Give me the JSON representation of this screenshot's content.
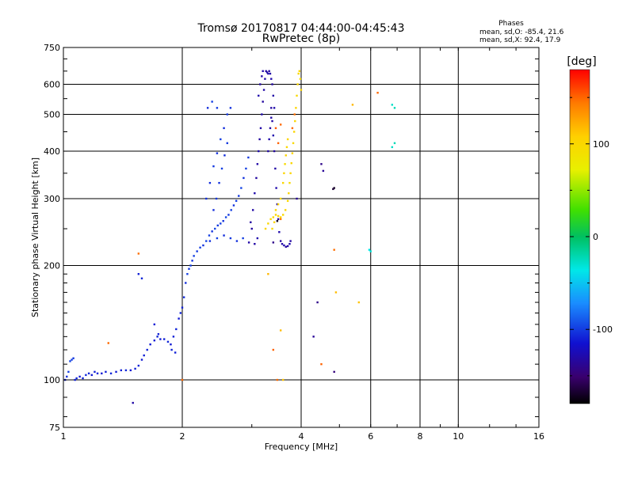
{
  "chart_data": {
    "type": "scatter",
    "title": "Tromsø 20170817 04:44:00-04:45:43",
    "subtitle": "RwPretec (8p)",
    "xlabel": "Frequency [MHz]",
    "ylabel": "Stationary phase Virtual Height [km]",
    "x_scale": "log",
    "y_scale": "log",
    "xlim": [
      1,
      16
    ],
    "ylim": [
      75,
      750
    ],
    "x_ticks": [
      1,
      2,
      4,
      6,
      8,
      10,
      16
    ],
    "x_tick_labels": [
      "1",
      "2",
      "4",
      "6",
      "8",
      "10",
      "16"
    ],
    "y_ticks": [
      75,
      100,
      200,
      300,
      400,
      500,
      600,
      750
    ],
    "y_tick_labels": [
      "75",
      "100",
      "200",
      "300",
      "400",
      "500",
      "600",
      "750"
    ],
    "grid": true,
    "phases_box": {
      "title": "Phases",
      "line_o": "mean, sd,O: -85.4, 21.6",
      "line_x": "mean, sd,X:  92.4, 17.9"
    },
    "colorbar": {
      "unit": "[deg]",
      "range": [
        -180,
        180
      ],
      "ticks": [
        100,
        0,
        -100
      ],
      "tick_labels": [
        "100",
        "0",
        "-100"
      ]
    },
    "series": [
      {
        "points": [
          [
            1.01,
            100,
            -110
          ],
          [
            1.02,
            102,
            -105
          ],
          [
            1.03,
            105,
            -100
          ],
          [
            1.04,
            112,
            -98
          ],
          [
            1.05,
            113,
            -100
          ],
          [
            1.06,
            114,
            -102
          ],
          [
            1.07,
            100,
            -110
          ],
          [
            1.08,
            101,
            -108
          ],
          [
            1.1,
            102,
            -112
          ],
          [
            1.12,
            101,
            -110
          ],
          [
            1.14,
            103,
            -105
          ],
          [
            1.16,
            104,
            -108
          ],
          [
            1.18,
            103,
            -112
          ],
          [
            1.2,
            105,
            -110
          ],
          [
            1.22,
            104,
            -108
          ],
          [
            1.25,
            104,
            -112
          ],
          [
            1.28,
            105,
            -110
          ],
          [
            1.32,
            104,
            -108
          ],
          [
            1.36,
            105,
            -112
          ],
          [
            1.4,
            106,
            -110
          ],
          [
            1.44,
            106,
            -108
          ],
          [
            1.48,
            106,
            -112
          ],
          [
            1.52,
            107,
            -110
          ],
          [
            1.55,
            109,
            -108
          ],
          [
            1.58,
            113,
            -112
          ],
          [
            1.6,
            116,
            -110
          ],
          [
            1.63,
            120,
            -108
          ],
          [
            1.66,
            124,
            -112
          ],
          [
            1.7,
            127,
            -110
          ],
          [
            1.73,
            130,
            -108
          ],
          [
            1.76,
            128,
            -112
          ],
          [
            1.8,
            128,
            -110
          ],
          [
            1.84,
            126,
            -108
          ],
          [
            1.87,
            124,
            -112
          ],
          [
            1.9,
            130,
            -110
          ],
          [
            1.93,
            136,
            -108
          ],
          [
            1.96,
            145,
            -112
          ],
          [
            1.98,
            150,
            -108
          ],
          [
            2.0,
            155,
            -110
          ],
          [
            2.02,
            165,
            -106
          ],
          [
            2.04,
            180,
            -105
          ],
          [
            2.06,
            190,
            -100
          ],
          [
            2.08,
            196,
            -102
          ],
          [
            2.1,
            200,
            -100
          ],
          [
            2.12,
            206,
            -104
          ],
          [
            2.14,
            212,
            -100
          ],
          [
            2.18,
            218,
            -102
          ],
          [
            2.22,
            223,
            -100
          ],
          [
            2.26,
            226,
            -104
          ],
          [
            2.3,
            232,
            -98
          ],
          [
            2.34,
            240,
            -100
          ],
          [
            2.38,
            246,
            -104
          ],
          [
            2.42,
            250,
            -98
          ],
          [
            2.46,
            255,
            -102
          ],
          [
            2.5,
            258,
            -100
          ],
          [
            2.54,
            262,
            -104
          ],
          [
            2.58,
            268,
            -98
          ],
          [
            2.62,
            272,
            -102
          ],
          [
            2.66,
            280,
            -100
          ],
          [
            2.7,
            288,
            -104
          ],
          [
            2.74,
            296,
            -100
          ],
          [
            2.78,
            305,
            -102
          ],
          [
            2.82,
            320,
            -98
          ],
          [
            2.86,
            340,
            -104
          ],
          [
            2.9,
            360,
            -100
          ],
          [
            2.94,
            385,
            -102
          ],
          [
            2.4,
            280,
            -106
          ],
          [
            2.44,
            300,
            -102
          ],
          [
            2.48,
            330,
            -104
          ],
          [
            2.52,
            360,
            -100
          ],
          [
            2.56,
            390,
            -106
          ],
          [
            2.6,
            420,
            -102
          ],
          [
            2.35,
            232,
            -104
          ],
          [
            2.45,
            236,
            -100
          ],
          [
            2.55,
            240,
            -106
          ],
          [
            2.65,
            236,
            -102
          ],
          [
            2.75,
            232,
            -104
          ],
          [
            2.85,
            236,
            -100
          ],
          [
            2.3,
            300,
            -104
          ],
          [
            2.35,
            330,
            -106
          ],
          [
            2.4,
            365,
            -102
          ],
          [
            2.45,
            395,
            -104
          ],
          [
            2.5,
            430,
            -100
          ],
          [
            2.55,
            460,
            -106
          ],
          [
            2.6,
            500,
            -102
          ],
          [
            2.65,
            520,
            -104
          ],
          [
            2.32,
            520,
            -106
          ],
          [
            2.38,
            540,
            -100
          ],
          [
            2.45,
            520,
            -102
          ],
          [
            1.55,
            190,
            -110
          ],
          [
            1.58,
            185,
            -108
          ],
          [
            1.7,
            140,
            -112
          ],
          [
            1.74,
            132,
            -110
          ],
          [
            1.88,
            120,
            -108
          ],
          [
            1.92,
            118,
            -110
          ]
        ]
      },
      {
        "points": [
          [
            2.95,
            230,
            -130
          ],
          [
            3.0,
            250,
            -132
          ],
          [
            3.02,
            280,
            -130
          ],
          [
            3.05,
            310,
            -128
          ],
          [
            3.08,
            340,
            -132
          ],
          [
            3.1,
            370,
            -130
          ],
          [
            3.12,
            400,
            -128
          ],
          [
            3.14,
            430,
            -132
          ],
          [
            3.16,
            460,
            -130
          ],
          [
            3.18,
            500,
            -128
          ],
          [
            3.2,
            540,
            -132
          ],
          [
            3.22,
            580,
            -130
          ],
          [
            3.24,
            620,
            -128
          ],
          [
            3.26,
            650,
            -132
          ],
          [
            3.28,
            645,
            -130
          ],
          [
            3.3,
            640,
            -128
          ],
          [
            3.32,
            650,
            -132
          ],
          [
            3.34,
            640,
            -130
          ],
          [
            3.36,
            620,
            -128
          ],
          [
            3.38,
            600,
            -132
          ],
          [
            3.4,
            560,
            -130
          ],
          [
            3.42,
            520,
            -128
          ],
          [
            3.36,
            520,
            -132
          ],
          [
            3.38,
            480,
            -130
          ],
          [
            3.4,
            440,
            -128
          ],
          [
            3.42,
            400,
            -132
          ],
          [
            3.44,
            360,
            -130
          ],
          [
            3.46,
            320,
            -128
          ],
          [
            3.48,
            290,
            -132
          ],
          [
            3.5,
            265,
            -130
          ],
          [
            3.52,
            245,
            -128
          ],
          [
            3.55,
            232,
            -132
          ],
          [
            3.58,
            228,
            -130
          ],
          [
            3.62,
            226,
            -128
          ],
          [
            3.66,
            224,
            -132
          ],
          [
            3.7,
            225,
            -130
          ],
          [
            3.74,
            228,
            -128
          ],
          [
            3.76,
            232,
            -132
          ],
          [
            3.3,
            400,
            -130
          ],
          [
            3.32,
            430,
            -128
          ],
          [
            3.34,
            460,
            -132
          ],
          [
            3.36,
            490,
            -130
          ],
          [
            3.12,
            560,
            -128
          ],
          [
            3.15,
            600,
            -132
          ],
          [
            3.18,
            630,
            -130
          ],
          [
            3.2,
            650,
            -128
          ],
          [
            2.98,
            260,
            -132
          ],
          [
            3.05,
            228,
            -130
          ],
          [
            3.1,
            236,
            -128
          ]
        ]
      },
      {
        "points": [
          [
            3.25,
            250,
            105
          ],
          [
            3.3,
            258,
            102
          ],
          [
            3.35,
            265,
            105
          ],
          [
            3.4,
            268,
            100
          ],
          [
            3.45,
            272,
            104
          ],
          [
            3.5,
            270,
            102
          ],
          [
            3.55,
            268,
            105
          ],
          [
            3.6,
            272,
            100
          ],
          [
            3.65,
            280,
            104
          ],
          [
            3.7,
            296,
            102
          ],
          [
            3.72,
            310,
            105
          ],
          [
            3.74,
            330,
            100
          ],
          [
            3.76,
            350,
            104
          ],
          [
            3.78,
            372,
            102
          ],
          [
            3.8,
            395,
            105
          ],
          [
            3.82,
            420,
            100
          ],
          [
            3.84,
            450,
            104
          ],
          [
            3.86,
            480,
            102
          ],
          [
            3.88,
            520,
            105
          ],
          [
            3.9,
            560,
            100
          ],
          [
            3.92,
            600,
            104
          ],
          [
            3.94,
            640,
            102
          ],
          [
            3.96,
            650,
            105
          ],
          [
            3.98,
            620,
            100
          ],
          [
            4.0,
            580,
            104
          ],
          [
            3.6,
            330,
            102
          ],
          [
            3.62,
            350,
            105
          ],
          [
            3.64,
            370,
            100
          ],
          [
            3.66,
            390,
            104
          ],
          [
            3.68,
            410,
            102
          ],
          [
            3.7,
            430,
            105
          ],
          [
            3.55,
            300,
            100
          ],
          [
            3.5,
            290,
            104
          ],
          [
            3.45,
            280,
            102
          ],
          [
            3.42,
            260,
            105
          ],
          [
            3.38,
            250,
            100
          ]
        ]
      },
      {
        "points": [
          [
            3.8,
            460,
            150
          ],
          [
            3.85,
            500,
            148
          ],
          [
            3.45,
            460,
            155
          ],
          [
            3.5,
            420,
            152
          ],
          [
            3.55,
            470,
            150
          ],
          [
            3.48,
            100,
            150
          ],
          [
            3.55,
            265,
            145
          ],
          [
            6.25,
            570,
            150
          ],
          [
            4.85,
            220,
            148
          ],
          [
            4.5,
            110,
            152
          ],
          [
            1.3,
            125,
            150
          ],
          [
            1.55,
            215,
            148
          ],
          [
            2.0,
            100,
            150
          ],
          [
            3.4,
            120,
            152
          ]
        ]
      },
      {
        "points": [
          [
            5.4,
            530,
            120
          ],
          [
            5.6,
            160,
            115
          ],
          [
            4.9,
            170,
            118
          ],
          [
            3.3,
            190,
            120
          ],
          [
            3.6,
            100,
            115
          ],
          [
            3.55,
            135,
            118
          ]
        ]
      },
      {
        "points": [
          [
            6.8,
            530,
            -30
          ],
          [
            6.9,
            520,
            -25
          ],
          [
            6.8,
            410,
            -30
          ],
          [
            6.9,
            420,
            -25
          ],
          [
            5.95,
            220,
            -40
          ],
          [
            6.0,
            218,
            -35
          ]
        ]
      },
      {
        "points": [
          [
            4.5,
            370,
            -140
          ],
          [
            4.55,
            355,
            -135
          ],
          [
            4.4,
            160,
            -140
          ],
          [
            4.3,
            130,
            -135
          ],
          [
            4.85,
            105,
            -145
          ],
          [
            1.5,
            87,
            -130
          ],
          [
            3.4,
            230,
            -140
          ],
          [
            3.9,
            300,
            -135
          ]
        ]
      },
      {
        "points": [
          [
            4.85,
            320,
            -170
          ],
          [
            4.82,
            318,
            -165
          ],
          [
            3.48,
            262,
            -170
          ]
        ]
      }
    ]
  }
}
